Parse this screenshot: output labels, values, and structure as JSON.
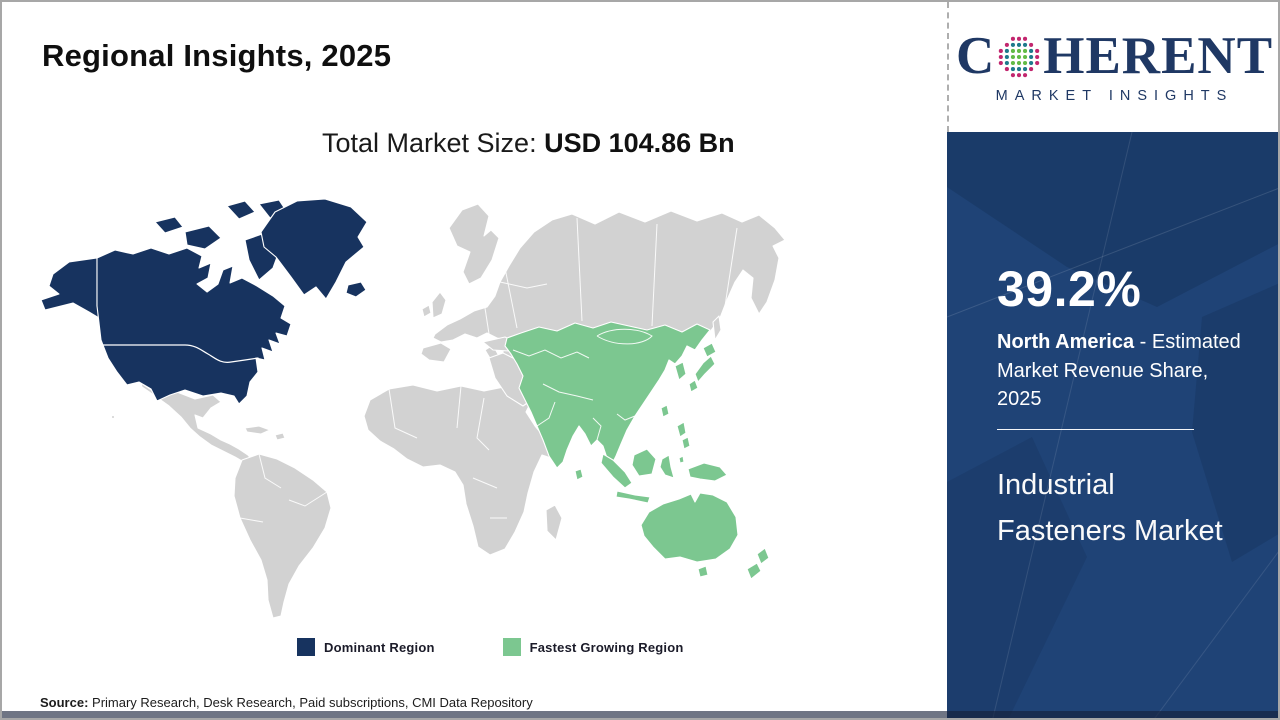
{
  "page": {
    "title": "Regional Insights, 2025"
  },
  "subtitle": {
    "label": "Total Market Size: ",
    "value": "USD 104.86 Bn"
  },
  "logo": {
    "brand_prefix": "C",
    "brand_suffix": "HERENT",
    "brand_sub": "MARKET INSIGHTS"
  },
  "legend": {
    "dominant_label": "Dominant Region",
    "fastest_label": "Fastest Growing Region"
  },
  "sidebar": {
    "share_value": "39.2%",
    "share_region": "North America",
    "share_desc": " - Estimated Market Revenue Share, 2025",
    "market_name": "Industrial Fasteners Market"
  },
  "source": {
    "label": "Source:",
    "text": " Primary Research, Desk Research, Paid subscriptions, CMI Data Repository"
  },
  "colors": {
    "dominant_region": "#17335F",
    "fastest_growing_region": "#7CC790",
    "country_gray": "#D2D2D2",
    "panel_bg": "#1F4376",
    "brand_navy": "#1F3864",
    "globe_green": "#62BB46",
    "globe_teal": "#1E7A8C",
    "globe_pink": "#C2266E"
  },
  "chart_data": {
    "type": "map",
    "title": "Regional Insights, 2025",
    "total_market_size": "USD 104.86 Bn",
    "year": "2025",
    "market": "Industrial Fasteners Market",
    "regions": [
      {
        "region": "North America",
        "role": "Dominant Region",
        "estimated_market_revenue_share_pct": 39.2,
        "color": "#17335F"
      },
      {
        "region": "Asia Pacific",
        "role": "Fastest Growing Region",
        "color": "#7CC790"
      }
    ],
    "legend_position": "bottom",
    "source": "Primary Research, Desk Research, Paid subscriptions, CMI Data Repository"
  }
}
